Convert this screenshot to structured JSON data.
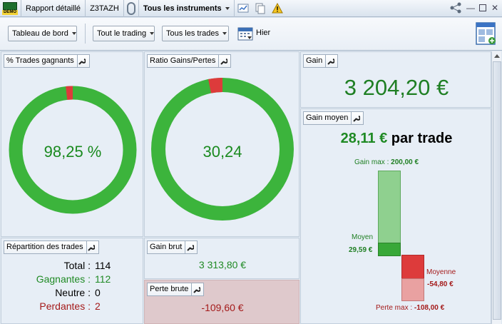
{
  "titlebar": {
    "demo_badge": "DEMO",
    "report": "Rapport détaillé",
    "account": "Z3TAZH",
    "instruments": "Tous les instruments"
  },
  "toolbar": {
    "dashboard": "Tableau de bord",
    "trading": "Tout le trading",
    "trades": "Tous les trades",
    "period": "Hier"
  },
  "panels": {
    "win_pct": {
      "title": "% Trades gagnants",
      "value_label": "98,25 %",
      "share": 0.9825
    },
    "ratio": {
      "title": "Ratio Gains/Pertes",
      "value_label": "30,24",
      "share": 0.968
    },
    "gain": {
      "title": "Gain",
      "value": "3 204,20 €"
    },
    "gain_moyen": {
      "title": "Gain moyen",
      "value": "28,11 €",
      "suffix": " par trade",
      "gain_max_label": "Gain max :",
      "gain_max": "200,00 €",
      "moyen_label": "Moyen",
      "moyen": "29,59 €",
      "moyenne_label": "Moyenne",
      "moyenne": "-54,80 €",
      "perte_max_label": "Perte max :",
      "perte_max": "-108,00 €"
    },
    "repartition": {
      "title": "Répartition des trades",
      "rows": [
        {
          "label": "Total :",
          "value": "114"
        },
        {
          "label": "Gagnantes :",
          "value": "112"
        },
        {
          "label": "Neutre :",
          "value": "0"
        },
        {
          "label": "Perdantes :",
          "value": "2"
        }
      ]
    },
    "gain_brut": {
      "title": "Gain brut",
      "value": "3 313,80 €"
    },
    "perte_brute": {
      "title": "Perte brute",
      "value": "-109,60 €"
    }
  },
  "colors": {
    "win": "#3cb43c",
    "loss": "#dd3b3b",
    "panel": "#e7eef6",
    "loss_panel": "#dfc9cc"
  }
}
